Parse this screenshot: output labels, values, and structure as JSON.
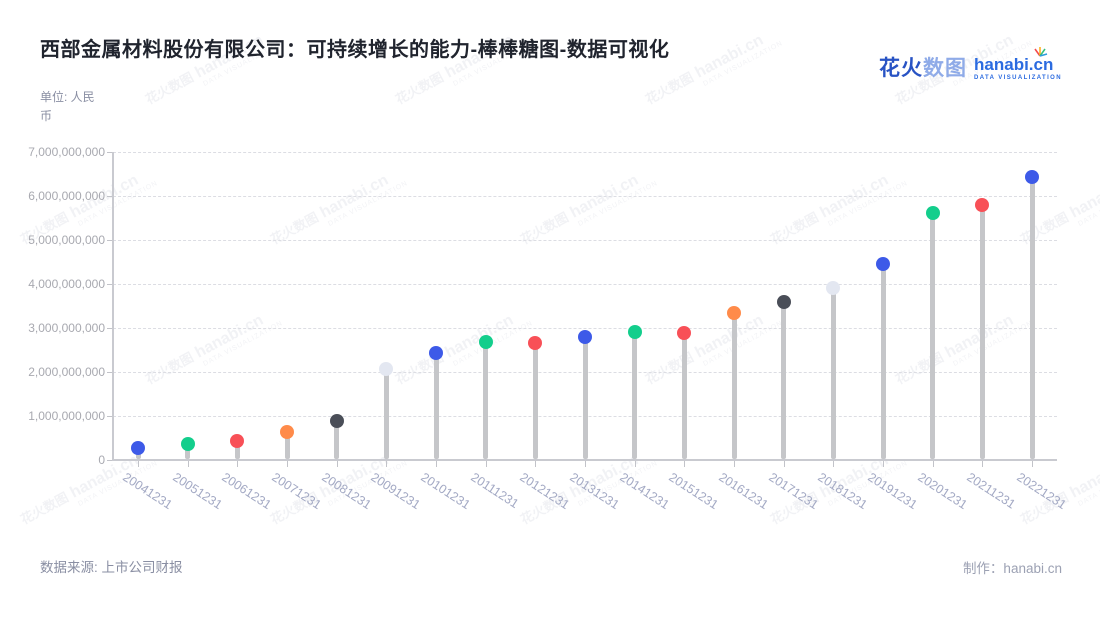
{
  "header": {
    "title": "西部金属材料股份有限公司：可持续增长的能力-棒棒糖图-数据可视化",
    "unit_label": "单位: 人民币"
  },
  "logo": {
    "zh_bold": "花火",
    "zh_light": "数图",
    "domain": "hanabi.cn",
    "tagline": "DATA VISUALIZATION"
  },
  "watermark": {
    "zh": "花火数图",
    "en": "hanabi.cn",
    "tagline": "DATA VISUALIZATION"
  },
  "footer": {
    "source": "数据来源: 上市公司财报",
    "credit": "制作：hanabi.cn"
  },
  "colors": {
    "blue": "#3D5AE8",
    "green": "#13CE8C",
    "red": "#F85057",
    "orange": "#FF8B4A",
    "dark": "#4A4E58",
    "light": "#E3E7F1",
    "stem": "#C5C6C9",
    "axis": "#C9CAD0",
    "grid": "#DCDDE3",
    "logo_blue": "#2B6BE0"
  },
  "chart_data": {
    "type": "lollipop",
    "title": "西部金属材料股份有限公司：可持续增长的能力-棒棒糖图-数据可视化",
    "unit": "人民币",
    "xlabel": "",
    "ylabel": "",
    "ylim": [
      0,
      7000000000
    ],
    "ytick_interval": 1000000000,
    "y_ticks": [
      "0",
      "1,000,000,000",
      "2,000,000,000",
      "3,000,000,000",
      "4,000,000,000",
      "5,000,000,000",
      "6,000,000,000",
      "7,000,000,000"
    ],
    "grid": "horizontal-dashed",
    "legend": "none",
    "categories": [
      "20041231",
      "20051231",
      "20061231",
      "20071231",
      "20081231",
      "20091231",
      "20101231",
      "20111231",
      "20121231",
      "20131231",
      "20141231",
      "20151231",
      "20161231",
      "20171231",
      "20181231",
      "20191231",
      "20201231",
      "20211231",
      "20221231"
    ],
    "values": [
      270000000,
      360000000,
      440000000,
      640000000,
      890000000,
      2060000000,
      2430000000,
      2690000000,
      2650000000,
      2800000000,
      2920000000,
      2880000000,
      3350000000,
      3600000000,
      3920000000,
      4450000000,
      5620000000,
      5800000000,
      6440000000
    ],
    "point_colors": [
      "#3D5AE8",
      "#13CE8C",
      "#F85057",
      "#FF8B4A",
      "#4A4E58",
      "#E3E7F1",
      "#3D5AE8",
      "#13CE8C",
      "#F85057",
      "#3D5AE8",
      "#13CE8C",
      "#F85057",
      "#FF8B4A",
      "#4A4E58",
      "#E3E7F1",
      "#3D5AE8",
      "#13CE8C",
      "#F85057",
      "#3D5AE8"
    ]
  }
}
